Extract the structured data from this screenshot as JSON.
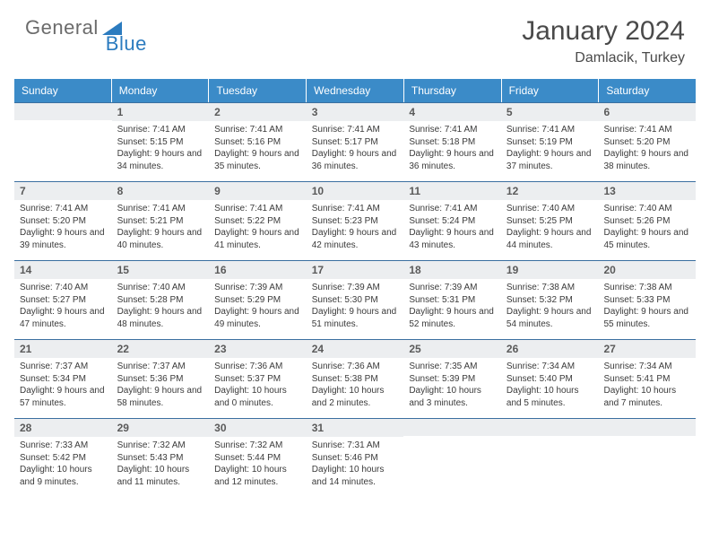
{
  "brand": {
    "part1": "General",
    "part2": "Blue"
  },
  "title": "January 2024",
  "location": "Damlacik, Turkey",
  "colors": {
    "header_bg": "#3b8bc8",
    "header_text": "#ffffff",
    "rule": "#3b6fa0",
    "daynum_bg": "#eceef0",
    "body_text": "#3a3a3a",
    "logo_gray": "#6b6b6b",
    "logo_blue": "#2b7bbf"
  },
  "day_names": [
    "Sunday",
    "Monday",
    "Tuesday",
    "Wednesday",
    "Thursday",
    "Friday",
    "Saturday"
  ],
  "weeks": [
    [
      {
        "n": "",
        "lines": []
      },
      {
        "n": "1",
        "lines": [
          "Sunrise: 7:41 AM",
          "Sunset: 5:15 PM",
          "Daylight: 9 hours and 34 minutes."
        ]
      },
      {
        "n": "2",
        "lines": [
          "Sunrise: 7:41 AM",
          "Sunset: 5:16 PM",
          "Daylight: 9 hours and 35 minutes."
        ]
      },
      {
        "n": "3",
        "lines": [
          "Sunrise: 7:41 AM",
          "Sunset: 5:17 PM",
          "Daylight: 9 hours and 36 minutes."
        ]
      },
      {
        "n": "4",
        "lines": [
          "Sunrise: 7:41 AM",
          "Sunset: 5:18 PM",
          "Daylight: 9 hours and 36 minutes."
        ]
      },
      {
        "n": "5",
        "lines": [
          "Sunrise: 7:41 AM",
          "Sunset: 5:19 PM",
          "Daylight: 9 hours and 37 minutes."
        ]
      },
      {
        "n": "6",
        "lines": [
          "Sunrise: 7:41 AM",
          "Sunset: 5:20 PM",
          "Daylight: 9 hours and 38 minutes."
        ]
      }
    ],
    [
      {
        "n": "7",
        "lines": [
          "Sunrise: 7:41 AM",
          "Sunset: 5:20 PM",
          "Daylight: 9 hours and 39 minutes."
        ]
      },
      {
        "n": "8",
        "lines": [
          "Sunrise: 7:41 AM",
          "Sunset: 5:21 PM",
          "Daylight: 9 hours and 40 minutes."
        ]
      },
      {
        "n": "9",
        "lines": [
          "Sunrise: 7:41 AM",
          "Sunset: 5:22 PM",
          "Daylight: 9 hours and 41 minutes."
        ]
      },
      {
        "n": "10",
        "lines": [
          "Sunrise: 7:41 AM",
          "Sunset: 5:23 PM",
          "Daylight: 9 hours and 42 minutes."
        ]
      },
      {
        "n": "11",
        "lines": [
          "Sunrise: 7:41 AM",
          "Sunset: 5:24 PM",
          "Daylight: 9 hours and 43 minutes."
        ]
      },
      {
        "n": "12",
        "lines": [
          "Sunrise: 7:40 AM",
          "Sunset: 5:25 PM",
          "Daylight: 9 hours and 44 minutes."
        ]
      },
      {
        "n": "13",
        "lines": [
          "Sunrise: 7:40 AM",
          "Sunset: 5:26 PM",
          "Daylight: 9 hours and 45 minutes."
        ]
      }
    ],
    [
      {
        "n": "14",
        "lines": [
          "Sunrise: 7:40 AM",
          "Sunset: 5:27 PM",
          "Daylight: 9 hours and 47 minutes."
        ]
      },
      {
        "n": "15",
        "lines": [
          "Sunrise: 7:40 AM",
          "Sunset: 5:28 PM",
          "Daylight: 9 hours and 48 minutes."
        ]
      },
      {
        "n": "16",
        "lines": [
          "Sunrise: 7:39 AM",
          "Sunset: 5:29 PM",
          "Daylight: 9 hours and 49 minutes."
        ]
      },
      {
        "n": "17",
        "lines": [
          "Sunrise: 7:39 AM",
          "Sunset: 5:30 PM",
          "Daylight: 9 hours and 51 minutes."
        ]
      },
      {
        "n": "18",
        "lines": [
          "Sunrise: 7:39 AM",
          "Sunset: 5:31 PM",
          "Daylight: 9 hours and 52 minutes."
        ]
      },
      {
        "n": "19",
        "lines": [
          "Sunrise: 7:38 AM",
          "Sunset: 5:32 PM",
          "Daylight: 9 hours and 54 minutes."
        ]
      },
      {
        "n": "20",
        "lines": [
          "Sunrise: 7:38 AM",
          "Sunset: 5:33 PM",
          "Daylight: 9 hours and 55 minutes."
        ]
      }
    ],
    [
      {
        "n": "21",
        "lines": [
          "Sunrise: 7:37 AM",
          "Sunset: 5:34 PM",
          "Daylight: 9 hours and 57 minutes."
        ]
      },
      {
        "n": "22",
        "lines": [
          "Sunrise: 7:37 AM",
          "Sunset: 5:36 PM",
          "Daylight: 9 hours and 58 minutes."
        ]
      },
      {
        "n": "23",
        "lines": [
          "Sunrise: 7:36 AM",
          "Sunset: 5:37 PM",
          "Daylight: 10 hours and 0 minutes."
        ]
      },
      {
        "n": "24",
        "lines": [
          "Sunrise: 7:36 AM",
          "Sunset: 5:38 PM",
          "Daylight: 10 hours and 2 minutes."
        ]
      },
      {
        "n": "25",
        "lines": [
          "Sunrise: 7:35 AM",
          "Sunset: 5:39 PM",
          "Daylight: 10 hours and 3 minutes."
        ]
      },
      {
        "n": "26",
        "lines": [
          "Sunrise: 7:34 AM",
          "Sunset: 5:40 PM",
          "Daylight: 10 hours and 5 minutes."
        ]
      },
      {
        "n": "27",
        "lines": [
          "Sunrise: 7:34 AM",
          "Sunset: 5:41 PM",
          "Daylight: 10 hours and 7 minutes."
        ]
      }
    ],
    [
      {
        "n": "28",
        "lines": [
          "Sunrise: 7:33 AM",
          "Sunset: 5:42 PM",
          "Daylight: 10 hours and 9 minutes."
        ]
      },
      {
        "n": "29",
        "lines": [
          "Sunrise: 7:32 AM",
          "Sunset: 5:43 PM",
          "Daylight: 10 hours and 11 minutes."
        ]
      },
      {
        "n": "30",
        "lines": [
          "Sunrise: 7:32 AM",
          "Sunset: 5:44 PM",
          "Daylight: 10 hours and 12 minutes."
        ]
      },
      {
        "n": "31",
        "lines": [
          "Sunrise: 7:31 AM",
          "Sunset: 5:46 PM",
          "Daylight: 10 hours and 14 minutes."
        ]
      },
      {
        "n": "",
        "lines": []
      },
      {
        "n": "",
        "lines": []
      },
      {
        "n": "",
        "lines": []
      }
    ]
  ]
}
